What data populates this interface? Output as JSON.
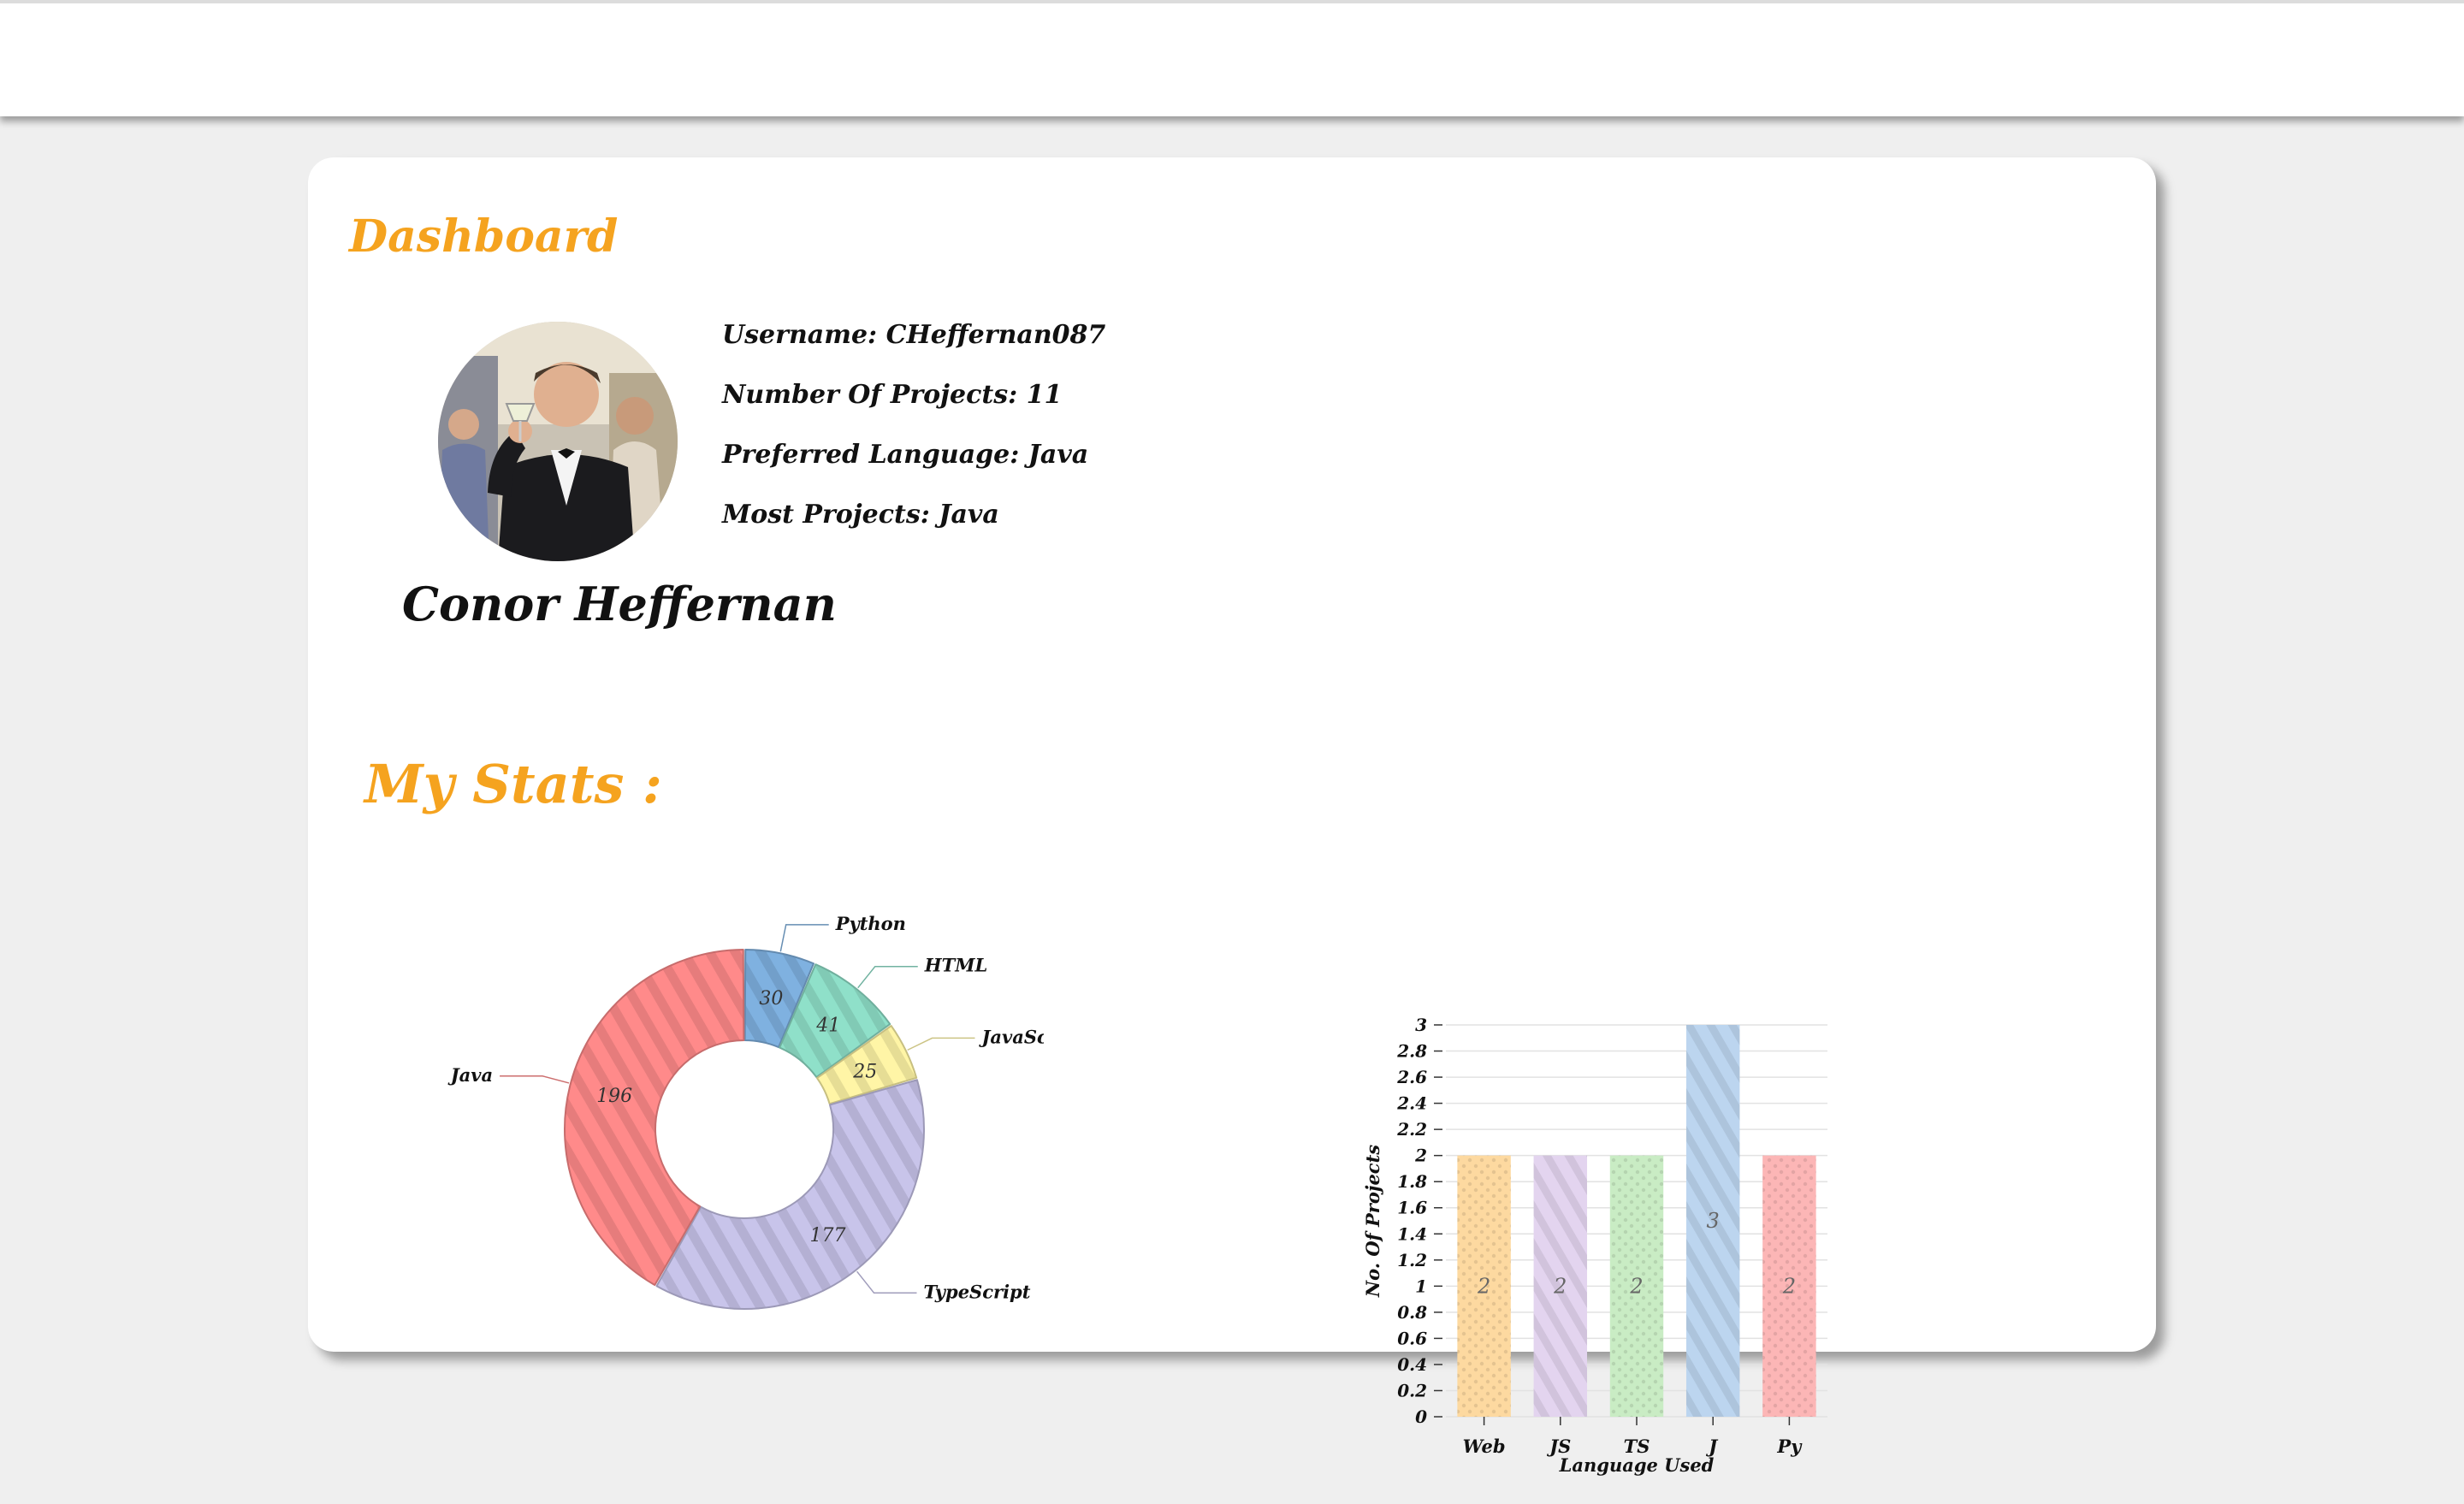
{
  "dashboard": {
    "title": "Dashboard",
    "full_name": "Conor Heffernan",
    "info": [
      {
        "label": "Username:",
        "value": "CHeffernan087"
      },
      {
        "label": "Number Of Projects:",
        "value": "11"
      },
      {
        "label": "Preferred Language:",
        "value": "Java"
      },
      {
        "label": "Most Projects:",
        "value": "Java"
      }
    ]
  },
  "stats": {
    "title": "My Stats :"
  },
  "chart_data": [
    {
      "type": "pie",
      "donut": true,
      "slices": [
        {
          "label": "Python",
          "value": 30,
          "color": "#7fb1e0"
        },
        {
          "label": "HTML",
          "value": 41,
          "color": "#8fe0c9"
        },
        {
          "label": "JavaScript",
          "value": 25,
          "color": "#fff5a6"
        },
        {
          "label": "TypeScript",
          "value": 177,
          "color": "#c8c4ea"
        },
        {
          "label": "Java",
          "value": 196,
          "color": "#ff8a8a"
        }
      ]
    },
    {
      "type": "bar",
      "categories": [
        "Web",
        "JS",
        "TS",
        "J",
        "Py"
      ],
      "values": [
        2,
        2,
        2,
        3,
        2
      ],
      "colors": [
        "#fdd9a0",
        "#e3d4ef",
        "#c9ecc4",
        "#bcd5ef",
        "#fcb6b6"
      ],
      "xlabel": "Language Used",
      "ylabel": "No. Of Projects",
      "ylim": [
        0,
        3
      ],
      "yticks": [
        "0",
        "0.2",
        "0.4",
        "0.6",
        "0.8",
        "1",
        "1.2",
        "1.4",
        "1.6",
        "1.8",
        "2",
        "2.2",
        "2.4",
        "2.6",
        "2.8",
        "3"
      ],
      "grid": true
    }
  ]
}
